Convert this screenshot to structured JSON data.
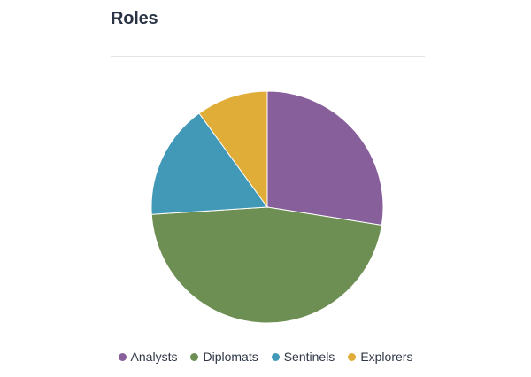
{
  "title": "Roles",
  "colors": {
    "Analysts": "#875f9a",
    "Diplomats": "#6d8f54",
    "Sentinels": "#4299b7",
    "Explorers": "#e0ae38"
  },
  "chart_data": {
    "type": "pie",
    "title": "Roles",
    "slices": [
      {
        "label": "Analysts",
        "value": 27.5
      },
      {
        "label": "Diplomats",
        "value": 46.5
      },
      {
        "label": "Sentinels",
        "value": 16
      },
      {
        "label": "Explorers",
        "value": 10
      }
    ],
    "legend": "bottom"
  }
}
